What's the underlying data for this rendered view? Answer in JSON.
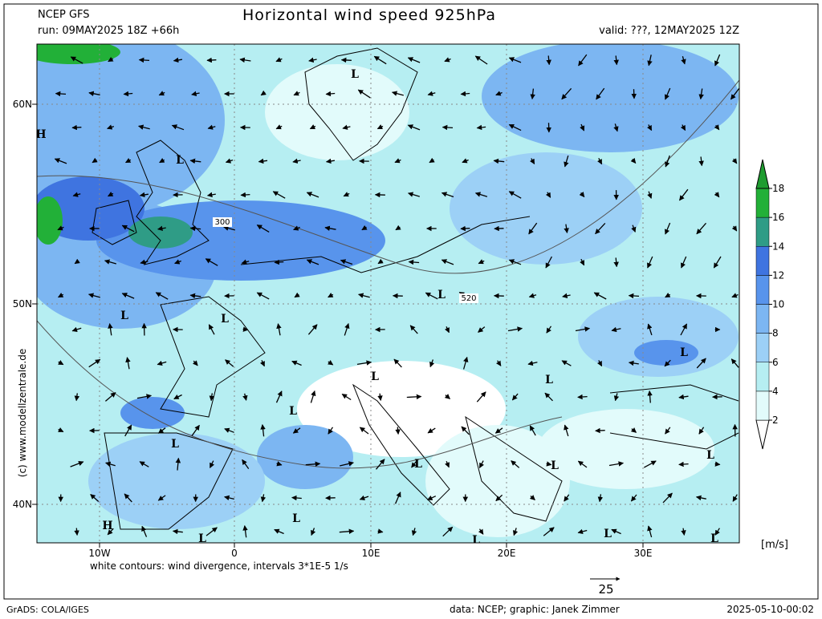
{
  "header": {
    "model": "NCEP GFS",
    "run": "run: 09MAY2025 18Z +66h",
    "title": "Horizontal wind speed 925hPa",
    "valid": "valid: ???, 12MAY2025 12Z"
  },
  "map": {
    "lat_labels": [
      "60N",
      "50N",
      "40N"
    ],
    "lon_labels": [
      "10W",
      "0",
      "10E",
      "20E",
      "30E"
    ],
    "pressure_labels": [
      "L",
      "L",
      "H",
      "L",
      "L",
      "L",
      "L",
      "L",
      "L",
      "L",
      "L",
      "L",
      "L",
      "L",
      "L",
      "H",
      "L",
      "L",
      "L",
      "L"
    ],
    "contour_labels": [
      "300",
      "520"
    ],
    "note": "white contours: wind divergence, intervals 3*1E-5 1/s",
    "vector_scale": "25",
    "credit": "(c) www.modellzentrale.de"
  },
  "colorbar": {
    "levels": [
      2,
      4,
      6,
      8,
      10,
      12,
      14,
      16,
      18
    ],
    "colors": [
      "#ffffff",
      "#e2fbfb",
      "#b6eef2",
      "#9cd0f6",
      "#7cb6f2",
      "#5894ec",
      "#3f74e0",
      "#2f9c86",
      "#22b038",
      "#1e9c30"
    ],
    "unit": "[m/s]"
  },
  "footer": {
    "software": "GrADS: COLA/IGES",
    "source": "data: NCEP; graphic: Janek Zimmer",
    "timestamp": "2025-05-10-00:02"
  }
}
